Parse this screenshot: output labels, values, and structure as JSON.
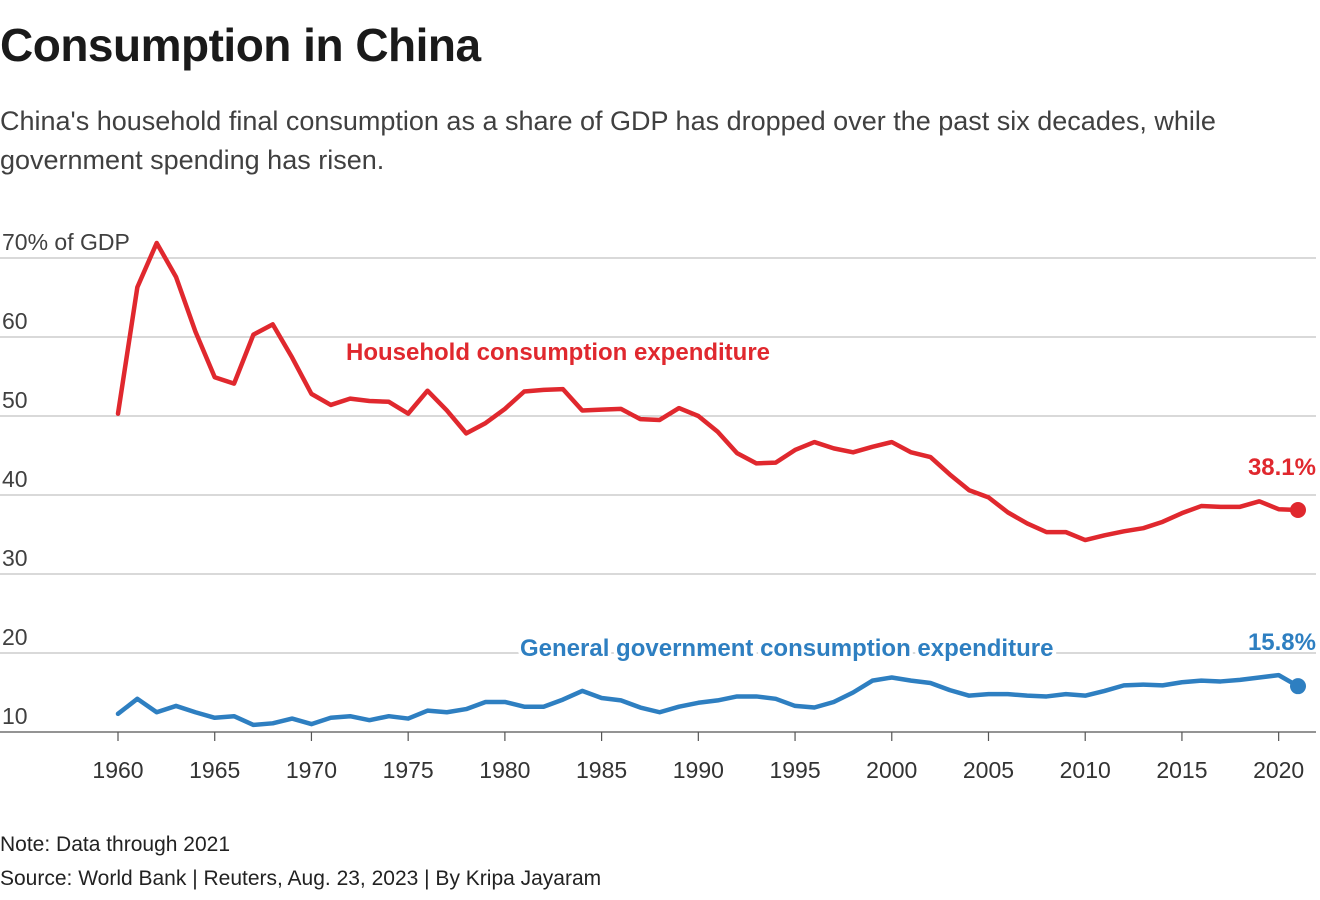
{
  "title": "Consumption in China",
  "subtitle": "China's household final consumption as a share of GDP has dropped over the past six decades, while government spending has risen.",
  "note": "Note: Data through 2021",
  "source": "Source: World Bank | Reuters, Aug. 23, 2023 | By Kripa Jayaram",
  "colors": {
    "household": "#e0282e",
    "government": "#2e7fc1",
    "grid": "#b3b3b3",
    "tick": "#333333"
  },
  "chart_data": {
    "type": "line",
    "title": "Consumption in China",
    "ylabel": "% of GDP",
    "ylim": [
      10,
      70
    ],
    "yticks": [
      10,
      20,
      30,
      40,
      50,
      60,
      70
    ],
    "ytick_labels": [
      "10",
      "20",
      "30",
      "40",
      "50",
      "60",
      "70% of GDP"
    ],
    "xlim": [
      1960,
      2021
    ],
    "xticks": [
      1960,
      1965,
      1970,
      1975,
      1980,
      1985,
      1990,
      1995,
      2000,
      2005,
      2010,
      2015,
      2020
    ],
    "x": [
      1960,
      1961,
      1962,
      1963,
      1964,
      1965,
      1966,
      1967,
      1968,
      1969,
      1970,
      1971,
      1972,
      1973,
      1974,
      1975,
      1976,
      1977,
      1978,
      1979,
      1980,
      1981,
      1982,
      1983,
      1984,
      1985,
      1986,
      1987,
      1988,
      1989,
      1990,
      1991,
      1992,
      1993,
      1994,
      1995,
      1996,
      1997,
      1998,
      1999,
      2000,
      2001,
      2002,
      2003,
      2004,
      2005,
      2006,
      2007,
      2008,
      2009,
      2010,
      2011,
      2012,
      2013,
      2014,
      2015,
      2016,
      2017,
      2018,
      2019,
      2020,
      2021
    ],
    "series": [
      {
        "name": "Household consumption expenditure",
        "color": "#e0282e",
        "end_label": "38.1%",
        "values": [
          50.3,
          66.3,
          71.9,
          67.6,
          60.7,
          54.9,
          54.1,
          60.3,
          61.6,
          57.4,
          52.8,
          51.4,
          52.2,
          51.9,
          51.8,
          50.3,
          53.2,
          50.7,
          47.8,
          49.1,
          50.9,
          53.1,
          53.3,
          53.4,
          50.7,
          50.8,
          50.9,
          49.6,
          49.5,
          51.0,
          50.0,
          48.0,
          45.3,
          44.0,
          44.1,
          45.7,
          46.7,
          45.9,
          45.4,
          46.1,
          46.7,
          45.4,
          44.8,
          42.6,
          40.6,
          39.7,
          37.8,
          36.4,
          35.3,
          35.3,
          34.3,
          34.9,
          35.4,
          35.8,
          36.6,
          37.7,
          38.6,
          38.5,
          38.5,
          39.2,
          38.2,
          38.1
        ]
      },
      {
        "name": "General government consumption expenditure",
        "color": "#2e7fc1",
        "end_label": "15.8%",
        "values": [
          12.3,
          14.2,
          12.5,
          13.3,
          12.5,
          11.8,
          12.0,
          10.9,
          11.1,
          11.7,
          11.0,
          11.8,
          12.0,
          11.5,
          12.0,
          11.7,
          12.7,
          12.5,
          12.9,
          13.8,
          13.8,
          13.2,
          13.2,
          14.1,
          15.2,
          14.3,
          14.0,
          13.1,
          12.5,
          13.2,
          13.7,
          14.0,
          14.5,
          14.5,
          14.2,
          13.3,
          13.1,
          13.8,
          15.0,
          16.5,
          16.9,
          16.5,
          16.2,
          15.3,
          14.6,
          14.8,
          14.8,
          14.6,
          14.5,
          14.8,
          14.6,
          15.2,
          15.9,
          16.0,
          15.9,
          16.3,
          16.5,
          16.4,
          16.6,
          16.9,
          17.2,
          15.8
        ]
      }
    ]
  }
}
